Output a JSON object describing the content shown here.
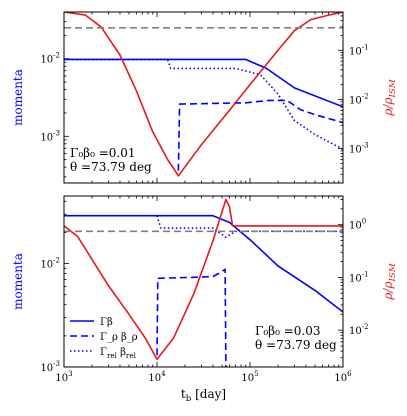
{
  "chart_data": [
    {
      "type": "line",
      "panel": "top",
      "xlabel": "t_b [day]",
      "ylabel_left": "momenta",
      "ylabel_right": "ρ/ρ_ISM",
      "x_scale": "log",
      "y_left_scale": "log",
      "y_right_scale": "log",
      "xlim": [
        1000,
        1000000
      ],
      "ylim_left": [
        0.00025,
        0.04
      ],
      "ylim_right": [
        0.0002,
        0.6
      ],
      "left_ticks": [
        "10^{-3}",
        "10^{-2}"
      ],
      "right_ticks": [
        "10^{-3}",
        "10^{-2}",
        "10^{-1}"
      ],
      "annotation": [
        "Γ₀β₀ =0.01",
        "θ =73.79 deg"
      ],
      "series": [
        {
          "style": "solid",
          "axis": "left",
          "color": "#0000ff",
          "points": [
            [
              1000,
              0.0098
            ],
            [
              90000,
              0.0098
            ],
            [
              150000,
              0.0075
            ],
            [
              300000,
              0.0042
            ],
            [
              1000000,
              0.0024
            ]
          ]
        },
        {
          "style": "dashed",
          "axis": "left",
          "color": "#0000ff",
          "points": [
            [
              17000,
              0.00036
            ],
            [
              17500,
              0.0026
            ],
            [
              90000,
              0.0027
            ],
            [
              160000,
              0.0029
            ],
            [
              250000,
              0.0029
            ],
            [
              350000,
              0.0022
            ],
            [
              500000,
              0.0019
            ],
            [
              1000000,
              0.0015
            ]
          ]
        },
        {
          "style": "dotted",
          "axis": "left",
          "color": "#0000ff",
          "points": [
            [
              1000,
              0.0098
            ],
            [
              13000,
              0.0098
            ],
            [
              14000,
              0.0075
            ],
            [
              70000,
              0.0075
            ],
            [
              130000,
              0.0062
            ],
            [
              200000,
              0.0035
            ],
            [
              300000,
              0.0016
            ],
            [
              500000,
              0.00105
            ],
            [
              1000000,
              0.00068
            ]
          ]
        },
        {
          "style": "solid",
          "axis": "right",
          "color": "#e41a1c",
          "points": [
            [
              1000,
              0.6
            ],
            [
              1700,
              0.52
            ],
            [
              2500,
              0.3
            ],
            [
              4000,
              0.08
            ],
            [
              6000,
              0.015
            ],
            [
              9000,
              0.0022
            ],
            [
              13000,
              0.0006
            ],
            [
              17000,
              0.00028
            ],
            [
              30000,
              0.0012
            ],
            [
              60000,
              0.006
            ],
            [
              100000,
              0.02
            ],
            [
              200000,
              0.1
            ],
            [
              300000,
              0.25
            ],
            [
              450000,
              0.42
            ],
            [
              700000,
              0.52
            ],
            [
              1000000,
              0.6
            ]
          ]
        },
        {
          "style": "dashed",
          "axis": "left",
          "color": "#808080",
          "points": [
            [
              1000,
              0.025
            ],
            [
              1000000,
              0.025
            ]
          ]
        }
      ]
    },
    {
      "type": "line",
      "panel": "bottom",
      "xlabel": "t_b [day]",
      "ylabel_left": "momenta",
      "ylabel_right": "ρ/ρ_ISM",
      "x_scale": "log",
      "y_left_scale": "log",
      "y_right_scale": "log",
      "xlim": [
        1000,
        1000000
      ],
      "ylim_left": [
        0.001,
        0.045
      ],
      "ylim_right": [
        0.002,
        3.5
      ],
      "x_ticks": [
        "10^3",
        "10^4",
        "10^5",
        "10^6"
      ],
      "left_ticks": [
        "10^{-3}",
        "10^{-2}"
      ],
      "right_ticks": [
        "10^{-2}",
        "10^{-1}",
        "10^0"
      ],
      "annotation": [
        "Γ₀β₀ =0.03",
        "θ =73.79 deg"
      ],
      "legend": {
        "position": "lower-left",
        "entries": [
          "Γβ",
          "Γ_ρ β_ρ",
          "Γ_rel β_rel"
        ]
      },
      "series": [
        {
          "name": "Γβ",
          "style": "solid",
          "axis": "left",
          "color": "#0000ff",
          "points": [
            [
              1000,
              0.029
            ],
            [
              40000,
              0.029
            ],
            [
              60000,
              0.025
            ],
            [
              100000,
              0.017
            ],
            [
              200000,
              0.0095
            ],
            [
              500000,
              0.0055
            ],
            [
              1000000,
              0.0034
            ]
          ]
        },
        {
          "name": "Γ_ρ β_ρ",
          "style": "dashed",
          "axis": "left",
          "color": "#0000ff",
          "points": [
            [
              10000,
              0.0013
            ],
            [
              10200,
              0.0072
            ],
            [
              30000,
              0.0074
            ],
            [
              40000,
              0.0075
            ],
            [
              48000,
              0.0082
            ],
            [
              54000,
              0.0088
            ],
            [
              55000,
              0.001
            ]
          ]
        },
        {
          "name": "Γ_rel β_rel",
          "style": "dotted",
          "axis": "left",
          "color": "#0000ff",
          "points": [
            [
              10000,
              0.029
            ],
            [
              11000,
              0.022
            ],
            [
              40000,
              0.022
            ],
            [
              55000,
              0.018
            ],
            [
              70000,
              0.0205
            ],
            [
              1000000,
              0.0205
            ]
          ]
        },
        {
          "style": "solid",
          "axis": "right",
          "color": "#e41a1c",
          "points": [
            [
              1000,
              0.95
            ],
            [
              1400,
              0.6
            ],
            [
              2000,
              0.22
            ],
            [
              3000,
              0.07
            ],
            [
              5000,
              0.02
            ],
            [
              7500,
              0.007
            ],
            [
              10000,
              0.0028
            ],
            [
              15000,
              0.007
            ],
            [
              25000,
              0.05
            ],
            [
              40000,
              0.5
            ],
            [
              55000,
              3.0
            ],
            [
              60000,
              2.2
            ],
            [
              65000,
              0.95
            ],
            [
              1000000,
              0.95
            ]
          ]
        },
        {
          "style": "dashed",
          "axis": "left",
          "color": "#808080",
          "points": [
            [
              1000,
              0.0205
            ],
            [
              1000000,
              0.0205
            ]
          ]
        }
      ]
    }
  ]
}
